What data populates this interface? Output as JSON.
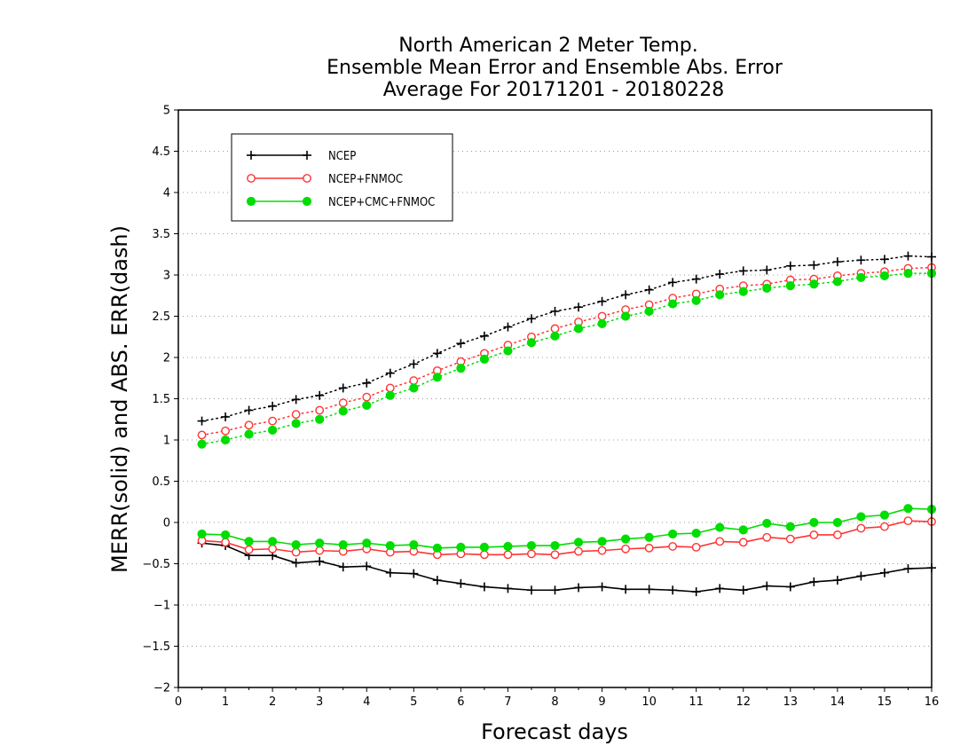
{
  "chart_data": {
    "type": "line",
    "title_lines": [
      "North American 2 Meter Temp.",
      "Ensemble Mean Error and Ensemble Abs. Error",
      "Average For 20171201 - 20180228"
    ],
    "xlabel": "Forecast days",
    "ylabel": "MERR(solid) and ABS. ERR(dash)",
    "xlim": [
      0,
      16
    ],
    "ylim": [
      -2,
      5
    ],
    "x_ticks": [
      "0",
      "1",
      "2",
      "3",
      "4",
      "5",
      "6",
      "7",
      "8",
      "9",
      "10",
      "11",
      "12",
      "13",
      "14",
      "15",
      "16"
    ],
    "y_ticks": [
      "5",
      "4.5",
      "4",
      "3.5",
      "3",
      "2.5",
      "2",
      "1.5",
      "1",
      "0.5",
      "0",
      "−0.5",
      "−1",
      "−1.5",
      "−2"
    ],
    "y_tick_values": [
      5,
      4.5,
      4,
      3.5,
      3,
      2.5,
      2,
      1.5,
      1,
      0.5,
      0,
      -0.5,
      -1,
      -1.5,
      -2
    ],
    "grid": "horizontal dotted",
    "legend_position": "top-left",
    "x": [
      0.5,
      1,
      1.5,
      2,
      2.5,
      3,
      3.5,
      4,
      4.5,
      5,
      5.5,
      6,
      6.5,
      7,
      7.5,
      8,
      8.5,
      9,
      9.5,
      10,
      10.5,
      11,
      11.5,
      12,
      12.5,
      13,
      13.5,
      14,
      14.5,
      15,
      15.5,
      16
    ],
    "series": [
      {
        "name": "NCEP",
        "color": "#000000",
        "marker": "plus",
        "merr": [
          -0.25,
          -0.28,
          -0.4,
          -0.4,
          -0.49,
          -0.47,
          -0.54,
          -0.53,
          -0.61,
          -0.62,
          -0.7,
          -0.74,
          -0.78,
          -0.8,
          -0.82,
          -0.82,
          -0.79,
          -0.78,
          -0.81,
          -0.81,
          -0.82,
          -0.84,
          -0.8,
          -0.82,
          -0.77,
          -0.78,
          -0.72,
          -0.7,
          -0.65,
          -0.61,
          -0.56,
          -0.55
        ],
        "abs_err": [
          1.23,
          1.28,
          1.36,
          1.41,
          1.49,
          1.54,
          1.63,
          1.69,
          1.81,
          1.92,
          2.05,
          2.17,
          2.26,
          2.37,
          2.47,
          2.56,
          2.61,
          2.68,
          2.76,
          2.82,
          2.91,
          2.95,
          3.01,
          3.05,
          3.06,
          3.11,
          3.12,
          3.16,
          3.18,
          3.19,
          3.23,
          3.22
        ]
      },
      {
        "name": "NCEP+FNMOC",
        "color": "#ff3333",
        "marker": "open-circle",
        "merr": [
          -0.22,
          -0.24,
          -0.33,
          -0.32,
          -0.36,
          -0.34,
          -0.35,
          -0.32,
          -0.36,
          -0.35,
          -0.39,
          -0.38,
          -0.39,
          -0.39,
          -0.38,
          -0.39,
          -0.35,
          -0.34,
          -0.32,
          -0.31,
          -0.29,
          -0.3,
          -0.23,
          -0.24,
          -0.18,
          -0.2,
          -0.15,
          -0.15,
          -0.07,
          -0.05,
          0.02,
          0.01
        ],
        "abs_err": [
          1.06,
          1.11,
          1.18,
          1.23,
          1.31,
          1.36,
          1.45,
          1.52,
          1.63,
          1.72,
          1.84,
          1.95,
          2.05,
          2.15,
          2.25,
          2.35,
          2.43,
          2.5,
          2.58,
          2.64,
          2.72,
          2.77,
          2.83,
          2.87,
          2.89,
          2.94,
          2.95,
          2.99,
          3.02,
          3.04,
          3.08,
          3.09
        ]
      },
      {
        "name": "NCEP+CMC+FNMOC",
        "color": "#00dd00",
        "marker": "filled-circle",
        "merr": [
          -0.14,
          -0.15,
          -0.23,
          -0.23,
          -0.27,
          -0.25,
          -0.27,
          -0.25,
          -0.28,
          -0.27,
          -0.31,
          -0.3,
          -0.3,
          -0.29,
          -0.28,
          -0.28,
          -0.24,
          -0.23,
          -0.2,
          -0.18,
          -0.14,
          -0.13,
          -0.06,
          -0.09,
          -0.01,
          -0.05,
          0.0,
          0.0,
          0.07,
          0.09,
          0.17,
          0.16
        ],
        "abs_err": [
          0.95,
          1.0,
          1.07,
          1.12,
          1.2,
          1.25,
          1.35,
          1.42,
          1.54,
          1.63,
          1.76,
          1.87,
          1.98,
          2.08,
          2.18,
          2.26,
          2.35,
          2.41,
          2.5,
          2.56,
          2.65,
          2.69,
          2.76,
          2.8,
          2.84,
          2.87,
          2.89,
          2.92,
          2.97,
          2.99,
          3.02,
          3.02
        ]
      }
    ]
  }
}
